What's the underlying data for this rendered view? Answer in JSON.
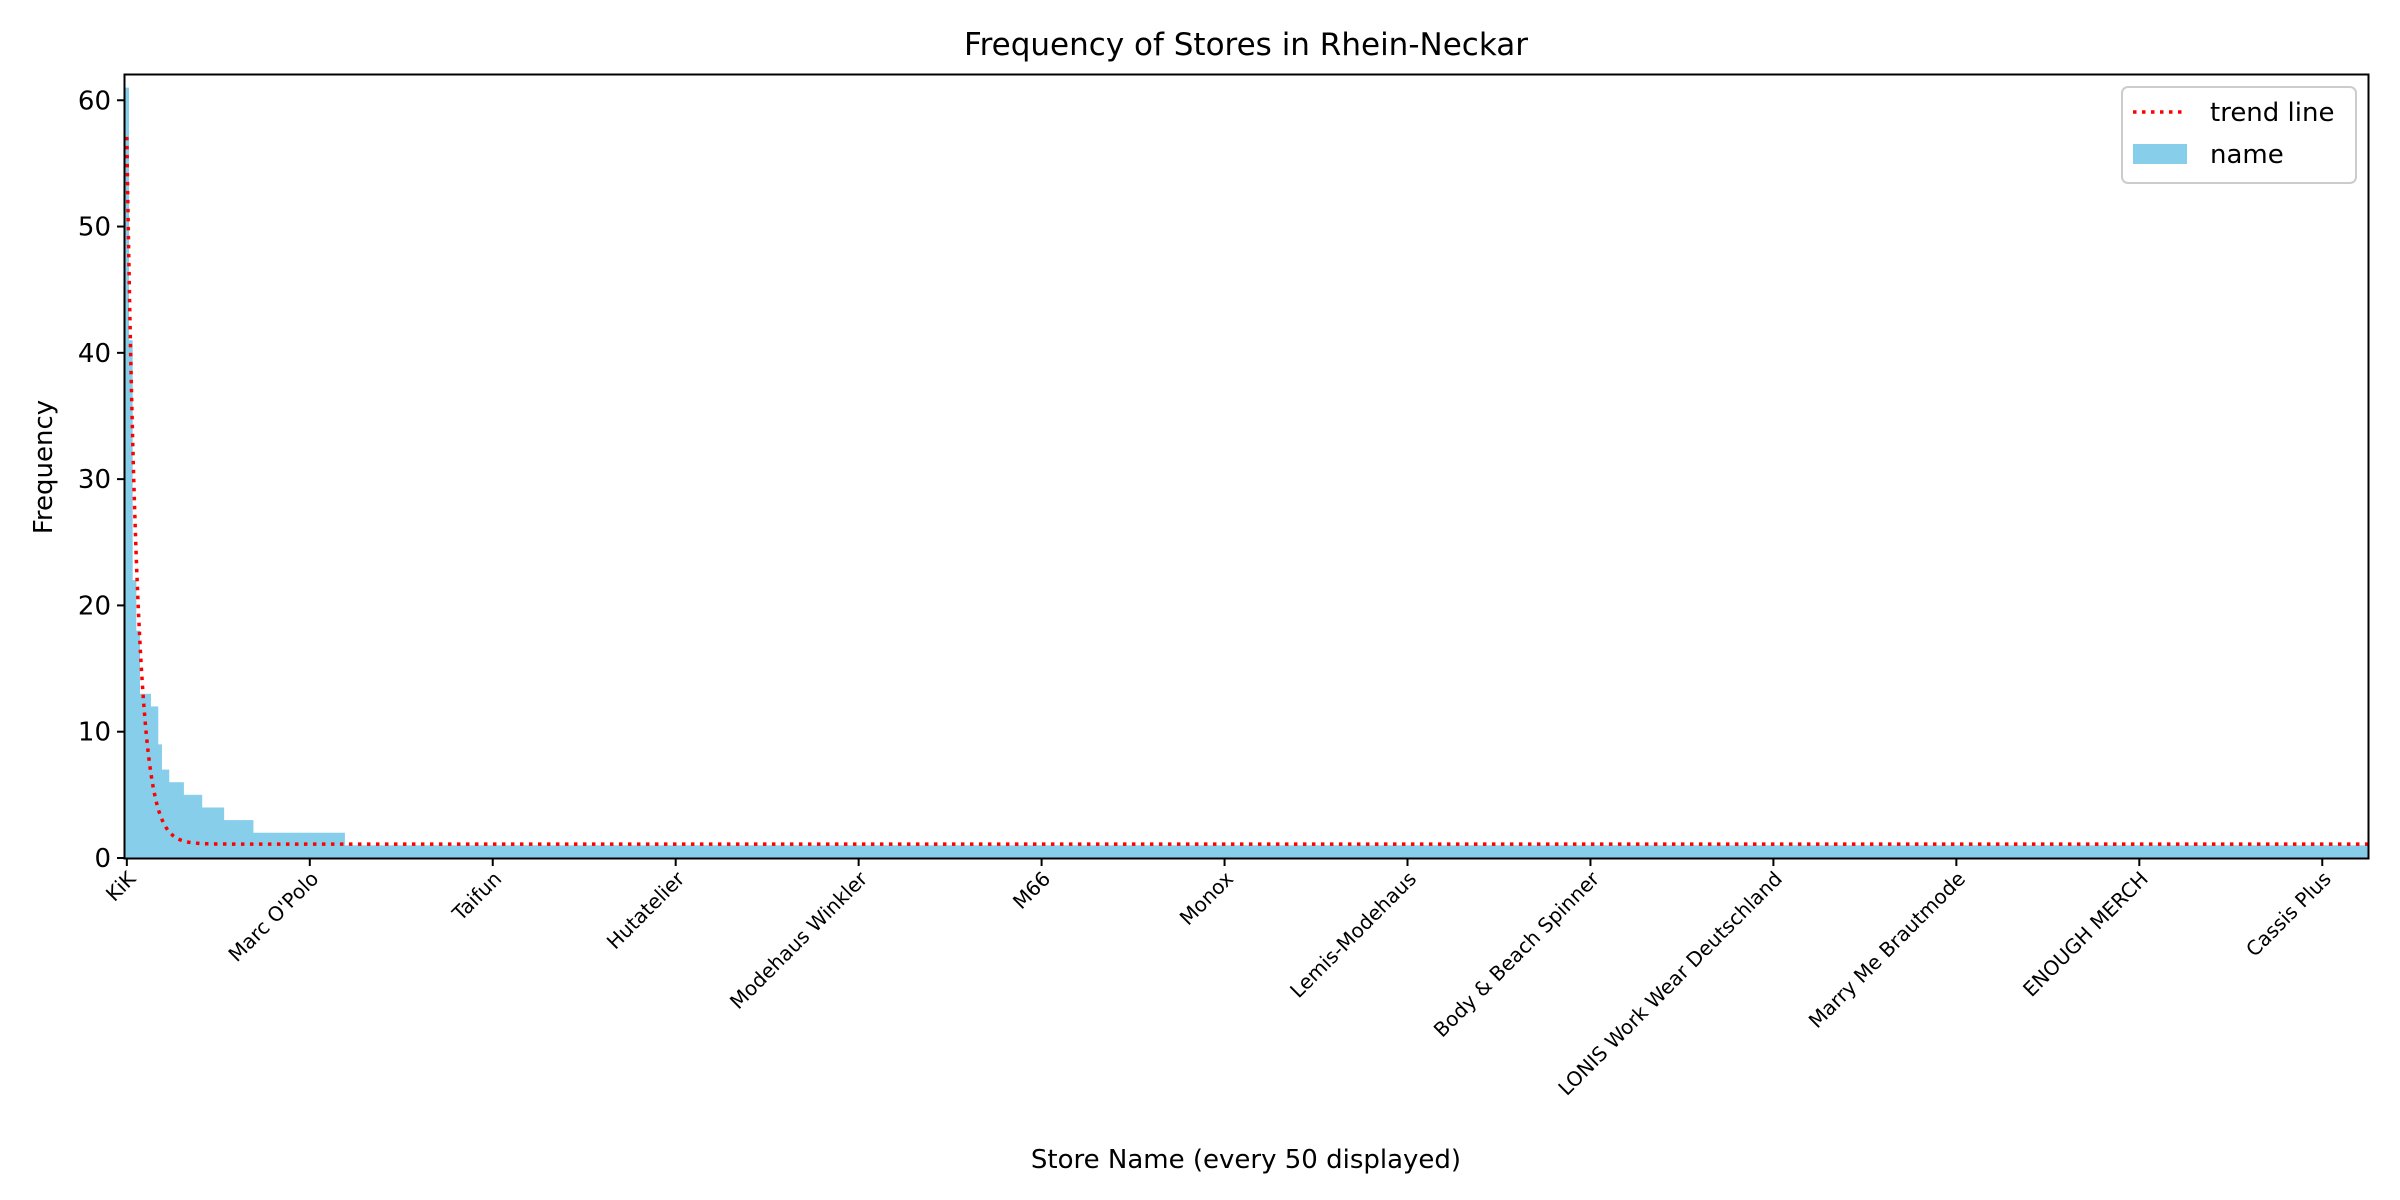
{
  "chart_data": {
    "type": "bar",
    "title": "Frequency of Stores in Rhein-Neckar",
    "xlabel": "Store Name (every 50 displayed)",
    "ylabel": "Frequency",
    "ylim": [
      0,
      62
    ],
    "xlim": [
      -0.5,
      612.5
    ],
    "yticks": [
      0,
      10,
      20,
      30,
      40,
      50,
      60
    ],
    "xticks": [
      {
        "index": 0,
        "label": "KiK"
      },
      {
        "index": 50,
        "label": "Marc O'Polo"
      },
      {
        "index": 100,
        "label": "Taifun"
      },
      {
        "index": 150,
        "label": "Hutatelier"
      },
      {
        "index": 200,
        "label": "Modehaus Winkler"
      },
      {
        "index": 250,
        "label": "M66"
      },
      {
        "index": 300,
        "label": "Monox"
      },
      {
        "index": 350,
        "label": "Lemis-Modehaus"
      },
      {
        "index": 400,
        "label": "Body & Beach Spinner"
      },
      {
        "index": 450,
        "label": "LONIS Work Wear Deutschland"
      },
      {
        "index": 500,
        "label": "Marry Me Brautmode"
      },
      {
        "index": 550,
        "label": "ENOUGH MERCH"
      },
      {
        "index": 600,
        "label": "Cassis Plus"
      }
    ],
    "bar_segments": [
      {
        "count": 1,
        "value": 61
      },
      {
        "count": 1,
        "value": 41
      },
      {
        "count": 1,
        "value": 22
      },
      {
        "count": 1,
        "value": 18
      },
      {
        "count": 3,
        "value": 13
      },
      {
        "count": 2,
        "value": 12
      },
      {
        "count": 1,
        "value": 9
      },
      {
        "count": 2,
        "value": 7
      },
      {
        "count": 4,
        "value": 6
      },
      {
        "count": 5,
        "value": 5
      },
      {
        "count": 6,
        "value": 4
      },
      {
        "count": 8,
        "value": 3
      },
      {
        "count": 25,
        "value": 2
      },
      {
        "count": 553,
        "value": 1
      }
    ],
    "total_bars": 613,
    "bar_color": "#87ceeb",
    "trend": {
      "type": "exponential",
      "a": 56,
      "k": 0.35,
      "c": 1.1,
      "color": "#ff0000",
      "style": "dotted"
    },
    "legend": {
      "position": "top-right",
      "entries": [
        {
          "label": "trend line",
          "kind": "dotted-line",
          "color": "#ff0000"
        },
        {
          "label": "name",
          "kind": "patch",
          "color": "#87ceeb"
        }
      ]
    }
  }
}
